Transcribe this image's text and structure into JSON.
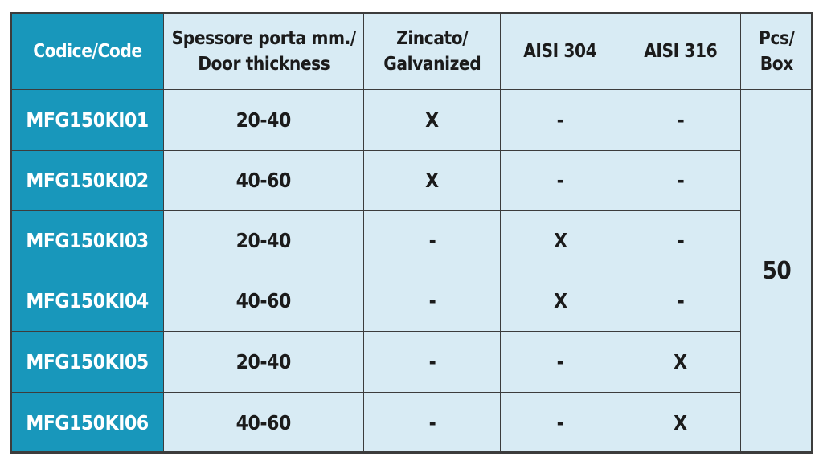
{
  "table": {
    "header": [
      [
        "Codice/Code"
      ],
      [
        "Spessore porta mm./",
        "Door thickness"
      ],
      [
        "Zincato/",
        "Galvanized"
      ],
      [
        "AISI 304"
      ],
      [
        "AISI 316"
      ],
      [
        "Pcs/",
        "Box"
      ]
    ],
    "rows": [
      [
        "MFG150KI01",
        "20-40",
        "X",
        "-",
        "-"
      ],
      [
        "MFG150KI02",
        "40-60",
        "X",
        "-",
        "-"
      ],
      [
        "MFG150KI03",
        "20-40",
        "-",
        "X",
        "-"
      ],
      [
        "MFG150KI04",
        "40-60",
        "-",
        "X",
        "-"
      ],
      [
        "MFG150KI05",
        "20-40",
        "-",
        "-",
        "X"
      ],
      [
        "MFG150KI06",
        "40-60",
        "-",
        "-",
        "X"
      ]
    ],
    "pcs_box": "50"
  }
}
